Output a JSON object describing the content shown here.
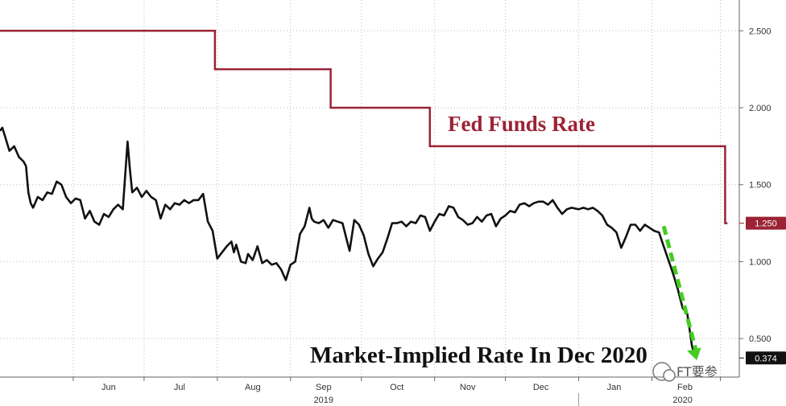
{
  "chart_data": {
    "type": "line",
    "colors": {
      "fed": "#9b2335",
      "market": "#111111",
      "arrow": "#44cc22",
      "grid": "#bbbbbb"
    },
    "y_axis": {
      "position": "right",
      "ylim": [
        0.25,
        2.7
      ],
      "ticks": [
        "2.500",
        "2.000",
        "1.500",
        "1.000",
        "0.500"
      ],
      "tick_values": [
        2.5,
        2.0,
        1.5,
        1.0,
        0.5
      ]
    },
    "x_axis": {
      "xlim": [
        "2019-05-01",
        "2020-03-09"
      ],
      "months": [
        {
          "label": "Jun",
          "date": "2019-06-16"
        },
        {
          "label": "Jul",
          "date": "2019-07-16"
        },
        {
          "label": "Aug",
          "date": "2019-08-16"
        },
        {
          "label": "Sep",
          "date": "2019-09-15"
        },
        {
          "label": "Oct",
          "date": "2019-10-16"
        },
        {
          "label": "Nov",
          "date": "2019-11-15"
        },
        {
          "label": "Dec",
          "date": "2019-12-16"
        },
        {
          "label": "Jan",
          "date": "2020-01-16"
        },
        {
          "label": "Feb",
          "date": "2020-02-15"
        }
      ],
      "month_boundaries": [
        "2019-06-01",
        "2019-07-01",
        "2019-08-01",
        "2019-09-01",
        "2019-10-01",
        "2019-11-01",
        "2019-12-01",
        "2020-01-01",
        "2020-02-01",
        "2020-03-01"
      ],
      "years": [
        {
          "label": "2019",
          "date": "2019-09-15"
        },
        {
          "label": "2020",
          "date": "2020-02-14"
        }
      ],
      "year_divider": "2020-01-01"
    },
    "series": [
      {
        "name": "Fed Funds Rate",
        "step": true,
        "points": [
          [
            "2019-05-01",
            2.5
          ],
          [
            "2019-07-31",
            2.25
          ],
          [
            "2019-09-18",
            2.0
          ],
          [
            "2019-10-30",
            1.75
          ],
          [
            "2020-03-03",
            1.25
          ],
          [
            "2020-03-04",
            1.25
          ]
        ],
        "last_value_label": "1.250"
      },
      {
        "name": "Market-Implied Rate In Dec 2020",
        "points": [
          [
            "2019-05-01",
            1.85
          ],
          [
            "2019-05-02",
            1.87
          ],
          [
            "2019-05-03",
            1.82
          ],
          [
            "2019-05-05",
            1.72
          ],
          [
            "2019-05-07",
            1.75
          ],
          [
            "2019-05-09",
            1.68
          ],
          [
            "2019-05-11",
            1.65
          ],
          [
            "2019-05-12",
            1.62
          ],
          [
            "2019-05-13",
            1.45
          ],
          [
            "2019-05-14",
            1.38
          ],
          [
            "2019-05-15",
            1.35
          ],
          [
            "2019-05-17",
            1.42
          ],
          [
            "2019-05-19",
            1.4
          ],
          [
            "2019-05-21",
            1.45
          ],
          [
            "2019-05-23",
            1.44
          ],
          [
            "2019-05-25",
            1.52
          ],
          [
            "2019-05-27",
            1.5
          ],
          [
            "2019-05-29",
            1.42
          ],
          [
            "2019-05-31",
            1.38
          ],
          [
            "2019-06-02",
            1.41
          ],
          [
            "2019-06-04",
            1.4
          ],
          [
            "2019-06-06",
            1.28
          ],
          [
            "2019-06-08",
            1.33
          ],
          [
            "2019-06-10",
            1.26
          ],
          [
            "2019-06-12",
            1.24
          ],
          [
            "2019-06-14",
            1.31
          ],
          [
            "2019-06-16",
            1.29
          ],
          [
            "2019-06-18",
            1.34
          ],
          [
            "2019-06-20",
            1.37
          ],
          [
            "2019-06-22",
            1.34
          ],
          [
            "2019-06-24",
            1.78
          ],
          [
            "2019-06-25",
            1.6
          ],
          [
            "2019-06-26",
            1.45
          ],
          [
            "2019-06-28",
            1.48
          ],
          [
            "2019-06-30",
            1.42
          ],
          [
            "2019-07-02",
            1.46
          ],
          [
            "2019-07-04",
            1.42
          ],
          [
            "2019-07-06",
            1.4
          ],
          [
            "2019-07-08",
            1.28
          ],
          [
            "2019-07-10",
            1.37
          ],
          [
            "2019-07-12",
            1.34
          ],
          [
            "2019-07-14",
            1.38
          ],
          [
            "2019-07-16",
            1.37
          ],
          [
            "2019-07-18",
            1.4
          ],
          [
            "2019-07-20",
            1.38
          ],
          [
            "2019-07-22",
            1.4
          ],
          [
            "2019-07-24",
            1.4
          ],
          [
            "2019-07-26",
            1.44
          ],
          [
            "2019-07-28",
            1.26
          ],
          [
            "2019-07-30",
            1.2
          ],
          [
            "2019-08-01",
            1.02
          ],
          [
            "2019-08-03",
            1.06
          ],
          [
            "2019-08-05",
            1.1
          ],
          [
            "2019-08-07",
            1.13
          ],
          [
            "2019-08-08",
            1.06
          ],
          [
            "2019-08-09",
            1.11
          ],
          [
            "2019-08-11",
            1.0
          ],
          [
            "2019-08-13",
            0.99
          ],
          [
            "2019-08-14",
            1.05
          ],
          [
            "2019-08-16",
            1.01
          ],
          [
            "2019-08-18",
            1.1
          ],
          [
            "2019-08-20",
            0.99
          ],
          [
            "2019-08-22",
            1.01
          ],
          [
            "2019-08-24",
            0.98
          ],
          [
            "2019-08-26",
            0.99
          ],
          [
            "2019-08-28",
            0.95
          ],
          [
            "2019-08-30",
            0.88
          ],
          [
            "2019-09-01",
            0.98
          ],
          [
            "2019-09-03",
            1.0
          ],
          [
            "2019-09-05",
            1.18
          ],
          [
            "2019-09-07",
            1.23
          ],
          [
            "2019-09-09",
            1.35
          ],
          [
            "2019-09-10",
            1.28
          ],
          [
            "2019-09-11",
            1.26
          ],
          [
            "2019-09-13",
            1.25
          ],
          [
            "2019-09-15",
            1.27
          ],
          [
            "2019-09-17",
            1.22
          ],
          [
            "2019-09-19",
            1.27
          ],
          [
            "2019-09-21",
            1.26
          ],
          [
            "2019-09-23",
            1.25
          ],
          [
            "2019-09-25",
            1.13
          ],
          [
            "2019-09-26",
            1.07
          ],
          [
            "2019-09-28",
            1.27
          ],
          [
            "2019-09-30",
            1.24
          ],
          [
            "2019-10-02",
            1.17
          ],
          [
            "2019-10-04",
            1.05
          ],
          [
            "2019-10-06",
            0.97
          ],
          [
            "2019-10-08",
            1.02
          ],
          [
            "2019-10-10",
            1.06
          ],
          [
            "2019-10-12",
            1.15
          ],
          [
            "2019-10-14",
            1.25
          ],
          [
            "2019-10-16",
            1.25
          ],
          [
            "2019-10-18",
            1.26
          ],
          [
            "2019-10-20",
            1.23
          ],
          [
            "2019-10-22",
            1.26
          ],
          [
            "2019-10-24",
            1.25
          ],
          [
            "2019-10-26",
            1.3
          ],
          [
            "2019-10-28",
            1.29
          ],
          [
            "2019-10-30",
            1.2
          ],
          [
            "2019-11-01",
            1.26
          ],
          [
            "2019-11-03",
            1.31
          ],
          [
            "2019-11-05",
            1.3
          ],
          [
            "2019-11-07",
            1.36
          ],
          [
            "2019-11-09",
            1.35
          ],
          [
            "2019-11-11",
            1.29
          ],
          [
            "2019-11-13",
            1.27
          ],
          [
            "2019-11-15",
            1.24
          ],
          [
            "2019-11-17",
            1.25
          ],
          [
            "2019-11-19",
            1.29
          ],
          [
            "2019-11-21",
            1.26
          ],
          [
            "2019-11-23",
            1.3
          ],
          [
            "2019-11-25",
            1.31
          ],
          [
            "2019-11-27",
            1.23
          ],
          [
            "2019-11-29",
            1.28
          ],
          [
            "2019-12-01",
            1.3
          ],
          [
            "2019-12-03",
            1.33
          ],
          [
            "2019-12-05",
            1.32
          ],
          [
            "2019-12-07",
            1.37
          ],
          [
            "2019-12-09",
            1.38
          ],
          [
            "2019-12-11",
            1.36
          ],
          [
            "2019-12-13",
            1.38
          ],
          [
            "2019-12-15",
            1.39
          ],
          [
            "2019-12-17",
            1.39
          ],
          [
            "2019-12-19",
            1.37
          ],
          [
            "2019-12-21",
            1.4
          ],
          [
            "2019-12-23",
            1.35
          ],
          [
            "2019-12-25",
            1.31
          ],
          [
            "2019-12-27",
            1.34
          ],
          [
            "2019-12-29",
            1.35
          ],
          [
            "2020-01-01",
            1.34
          ],
          [
            "2020-01-03",
            1.35
          ],
          [
            "2020-01-05",
            1.34
          ],
          [
            "2020-01-07",
            1.35
          ],
          [
            "2020-01-09",
            1.33
          ],
          [
            "2020-01-11",
            1.3
          ],
          [
            "2020-01-13",
            1.24
          ],
          [
            "2020-01-15",
            1.22
          ],
          [
            "2020-01-17",
            1.19
          ],
          [
            "2020-01-19",
            1.09
          ],
          [
            "2020-01-21",
            1.16
          ],
          [
            "2020-01-23",
            1.24
          ],
          [
            "2020-01-25",
            1.24
          ],
          [
            "2020-01-27",
            1.2
          ],
          [
            "2020-01-29",
            1.24
          ],
          [
            "2020-01-31",
            1.22
          ],
          [
            "2020-02-02",
            1.2
          ],
          [
            "2020-02-04",
            1.19
          ],
          [
            "2020-02-06",
            1.1
          ],
          [
            "2020-02-08",
            1.01
          ],
          [
            "2020-02-10",
            0.92
          ],
          [
            "2020-02-12",
            0.82
          ],
          [
            "2020-02-14",
            0.7
          ],
          [
            "2020-02-16",
            0.66
          ],
          [
            "2020-02-18",
            0.45
          ],
          [
            "2020-02-19",
            0.4
          ],
          [
            "2020-02-20",
            0.374
          ]
        ],
        "last_value_label": "0.374"
      }
    ],
    "annotations": {
      "fed_label": "Fed Funds Rate",
      "market_label": "Market-Implied Rate In Dec 2020"
    },
    "trend_arrow": {
      "from": [
        "2020-02-06",
        1.23
      ],
      "to": [
        "2020-02-20",
        0.36
      ]
    },
    "grid": true,
    "legend": "none"
  },
  "watermark": {
    "text": "FT要参"
  }
}
